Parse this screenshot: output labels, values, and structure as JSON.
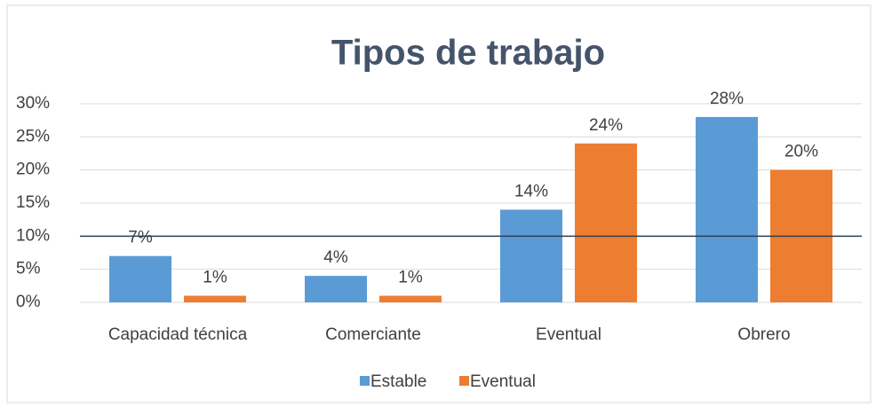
{
  "chart_data": {
    "type": "bar",
    "title": "Tipos de trabajo",
    "categories": [
      "Capacidad técnica",
      "Comerciante",
      "Eventual",
      "Obrero"
    ],
    "series": [
      {
        "name": "Estable",
        "color": "#5b9bd5",
        "values": [
          7,
          4,
          14,
          28
        ],
        "value_labels": [
          "7%",
          "4%",
          "14%",
          "28%"
        ]
      },
      {
        "name": "Eventual",
        "color": "#ed7d31",
        "values": [
          1,
          1,
          24,
          20
        ],
        "value_labels": [
          "1%",
          "1%",
          "24%",
          "20%"
        ]
      }
    ],
    "ylim": [
      0,
      30
    ],
    "yticks": [
      {
        "value": 0,
        "label": "0%"
      },
      {
        "value": 5,
        "label": "5%"
      },
      {
        "value": 10,
        "label": "10%"
      },
      {
        "value": 15,
        "label": "15%"
      },
      {
        "value": 20,
        "label": "20%"
      },
      {
        "value": 25,
        "label": "25%"
      },
      {
        "value": 30,
        "label": "30%"
      }
    ],
    "grid": true,
    "reference_line": 10,
    "legend": "bottom"
  }
}
